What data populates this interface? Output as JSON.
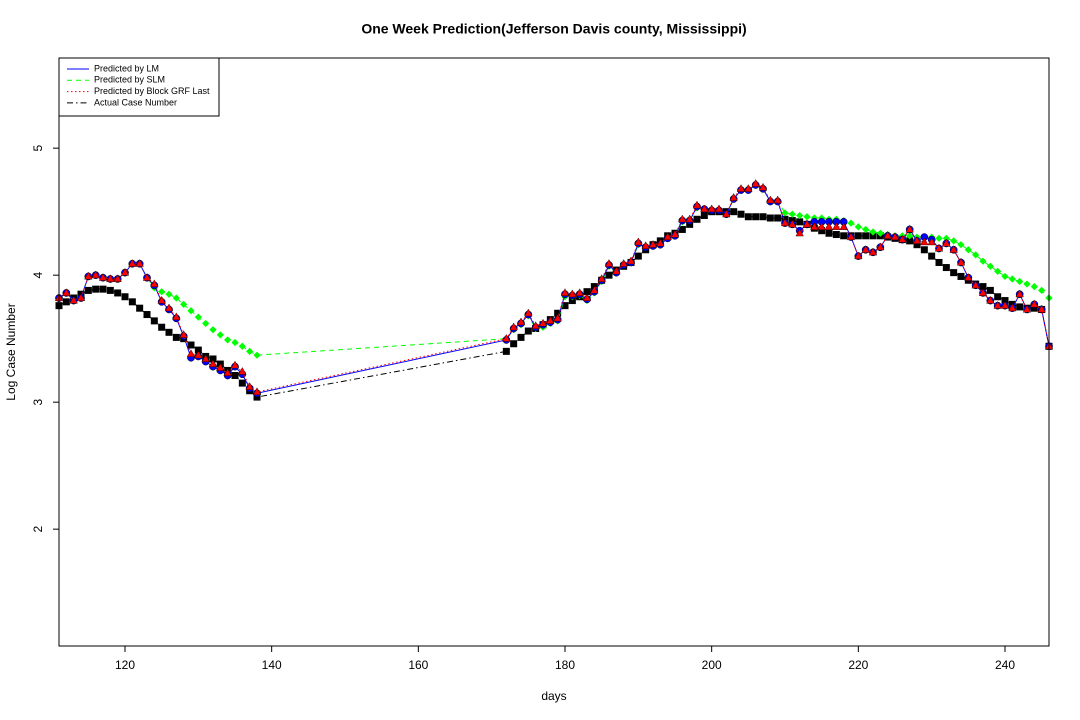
{
  "chart_data": {
    "type": "line",
    "title": "One Week Prediction(Jefferson Davis county, Mississippi)",
    "x_label": "days",
    "y_label": "Log Case Number",
    "xlim": [
      111,
      246
    ],
    "ylim": [
      1.08,
      5.71
    ],
    "xticks": [
      120,
      140,
      160,
      180,
      200,
      220,
      240
    ],
    "yticks": [
      2,
      3,
      4,
      5
    ],
    "legend": "top-left",
    "x": [
      111,
      112,
      113,
      114,
      115,
      116,
      117,
      118,
      119,
      120,
      121,
      122,
      123,
      124,
      125,
      126,
      127,
      128,
      129,
      130,
      131,
      132,
      133,
      134,
      135,
      136,
      137,
      138,
      172,
      173,
      174,
      175,
      176,
      177,
      178,
      179,
      180,
      181,
      182,
      183,
      184,
      185,
      186,
      187,
      188,
      189,
      190,
      191,
      192,
      193,
      194,
      195,
      196,
      197,
      198,
      199,
      200,
      201,
      202,
      203,
      204,
      205,
      206,
      207,
      208,
      209,
      210,
      211,
      212,
      213,
      214,
      215,
      216,
      217,
      218,
      219,
      220,
      221,
      222,
      223,
      224,
      225,
      226,
      227,
      228,
      229,
      230,
      231,
      232,
      233,
      234,
      235,
      236,
      237,
      238,
      239,
      240,
      241,
      242,
      243,
      244,
      245,
      246
    ],
    "series": [
      {
        "name": "Predicted by LM",
        "color": "#0000ff",
        "linestyle": "solid",
        "marker": "circle",
        "values": [
          3.82,
          3.86,
          3.8,
          3.82,
          3.99,
          4.0,
          3.98,
          3.97,
          3.97,
          4.02,
          4.09,
          4.09,
          3.98,
          3.92,
          3.79,
          3.73,
          3.66,
          3.52,
          3.35,
          3.36,
          3.32,
          3.28,
          3.25,
          3.21,
          3.28,
          3.22,
          3.11,
          3.07,
          3.49,
          3.58,
          3.62,
          3.69,
          3.59,
          3.61,
          3.63,
          3.65,
          3.85,
          3.84,
          3.85,
          3.81,
          3.87,
          3.96,
          4.08,
          4.02,
          4.08,
          4.1,
          4.25,
          4.22,
          4.23,
          4.24,
          4.29,
          4.31,
          4.43,
          4.43,
          4.54,
          4.52,
          4.51,
          4.51,
          4.48,
          4.6,
          4.67,
          4.67,
          4.71,
          4.68,
          4.58,
          4.58,
          4.41,
          4.4,
          4.35,
          4.4,
          4.42,
          4.42,
          4.42,
          4.42,
          4.42,
          4.3,
          4.15,
          4.2,
          4.18,
          4.22,
          4.31,
          4.3,
          4.28,
          4.36,
          4.27,
          4.3,
          4.28,
          4.21,
          4.25,
          4.2,
          4.1,
          3.98,
          3.92,
          3.86,
          3.8,
          3.76,
          3.76,
          3.74,
          3.85,
          3.73,
          3.77,
          3.73,
          3.44
        ]
      },
      {
        "name": "Predicted by SLM",
        "color": "#00ff00",
        "linestyle": "dashed",
        "marker": "diamond",
        "values": [
          3.82,
          3.86,
          3.8,
          3.82,
          3.99,
          4.0,
          3.98,
          3.97,
          3.97,
          4.02,
          4.09,
          4.09,
          3.98,
          3.9,
          3.87,
          3.85,
          3.82,
          3.77,
          3.72,
          3.67,
          3.62,
          3.57,
          3.53,
          3.49,
          3.47,
          3.44,
          3.4,
          3.37,
          3.5,
          3.57,
          3.61,
          3.68,
          3.58,
          3.59,
          3.62,
          3.64,
          3.83,
          3.83,
          3.84,
          3.8,
          3.86,
          3.95,
          4.07,
          4.02,
          4.08,
          4.1,
          4.24,
          4.22,
          4.23,
          4.24,
          4.29,
          4.31,
          4.42,
          4.43,
          4.53,
          4.52,
          4.51,
          4.51,
          4.48,
          4.6,
          4.67,
          4.67,
          4.71,
          4.68,
          4.58,
          4.58,
          4.49,
          4.48,
          4.47,
          4.46,
          4.45,
          4.45,
          4.44,
          4.44,
          4.43,
          4.41,
          4.38,
          4.36,
          4.34,
          4.33,
          4.32,
          4.31,
          4.31,
          4.31,
          4.3,
          4.3,
          4.3,
          4.29,
          4.29,
          4.27,
          4.24,
          4.2,
          4.16,
          4.11,
          4.07,
          4.03,
          3.99,
          3.97,
          3.95,
          3.93,
          3.91,
          3.88,
          3.82
        ]
      },
      {
        "name": "Predicted by Block GRF Last",
        "color": "#ff0000",
        "linestyle": "dotted",
        "marker": "triangle",
        "values": [
          3.82,
          3.86,
          3.8,
          3.82,
          3.99,
          4.0,
          3.98,
          3.97,
          3.97,
          4.02,
          4.09,
          4.09,
          3.98,
          3.93,
          3.8,
          3.74,
          3.67,
          3.53,
          3.38,
          3.37,
          3.34,
          3.3,
          3.27,
          3.23,
          3.29,
          3.24,
          3.12,
          3.08,
          3.5,
          3.59,
          3.63,
          3.7,
          3.6,
          3.62,
          3.64,
          3.66,
          3.86,
          3.85,
          3.86,
          3.82,
          3.88,
          3.97,
          4.09,
          4.03,
          4.09,
          4.11,
          4.26,
          4.23,
          4.24,
          4.25,
          4.3,
          4.32,
          4.44,
          4.44,
          4.55,
          4.52,
          4.52,
          4.52,
          4.48,
          4.61,
          4.68,
          4.68,
          4.72,
          4.69,
          4.59,
          4.59,
          4.41,
          4.4,
          4.33,
          4.4,
          4.38,
          4.38,
          4.38,
          4.38,
          4.38,
          4.3,
          4.15,
          4.2,
          4.18,
          4.22,
          4.31,
          4.3,
          4.28,
          4.36,
          4.27,
          4.26,
          4.26,
          4.21,
          4.25,
          4.2,
          4.1,
          3.98,
          3.92,
          3.86,
          3.8,
          3.76,
          3.76,
          3.74,
          3.85,
          3.73,
          3.77,
          3.73,
          3.44
        ]
      },
      {
        "name": "Actual Case Number",
        "color": "#000000",
        "linestyle": "dashdot",
        "marker": "square",
        "values": [
          3.76,
          3.79,
          3.82,
          3.85,
          3.88,
          3.89,
          3.89,
          3.88,
          3.86,
          3.83,
          3.79,
          3.74,
          3.69,
          3.64,
          3.59,
          3.55,
          3.51,
          3.5,
          3.45,
          3.41,
          3.36,
          3.34,
          3.3,
          3.25,
          3.21,
          3.15,
          3.09,
          3.04,
          3.4,
          3.46,
          3.51,
          3.56,
          3.58,
          3.61,
          3.65,
          3.7,
          3.76,
          3.8,
          3.83,
          3.87,
          3.91,
          3.96,
          4.0,
          4.04,
          4.07,
          4.1,
          4.15,
          4.2,
          4.24,
          4.27,
          4.31,
          4.33,
          4.36,
          4.4,
          4.44,
          4.47,
          4.5,
          4.5,
          4.5,
          4.5,
          4.48,
          4.46,
          4.46,
          4.46,
          4.45,
          4.45,
          4.44,
          4.43,
          4.42,
          4.4,
          4.37,
          4.35,
          4.33,
          4.32,
          4.31,
          4.31,
          4.31,
          4.31,
          4.31,
          4.31,
          4.3,
          4.29,
          4.28,
          4.27,
          4.24,
          4.2,
          4.15,
          4.1,
          4.06,
          4.02,
          3.99,
          3.96,
          3.93,
          3.91,
          3.88,
          3.83,
          3.8,
          3.77,
          3.75,
          3.74,
          3.74,
          3.73,
          3.44
        ]
      }
    ]
  }
}
